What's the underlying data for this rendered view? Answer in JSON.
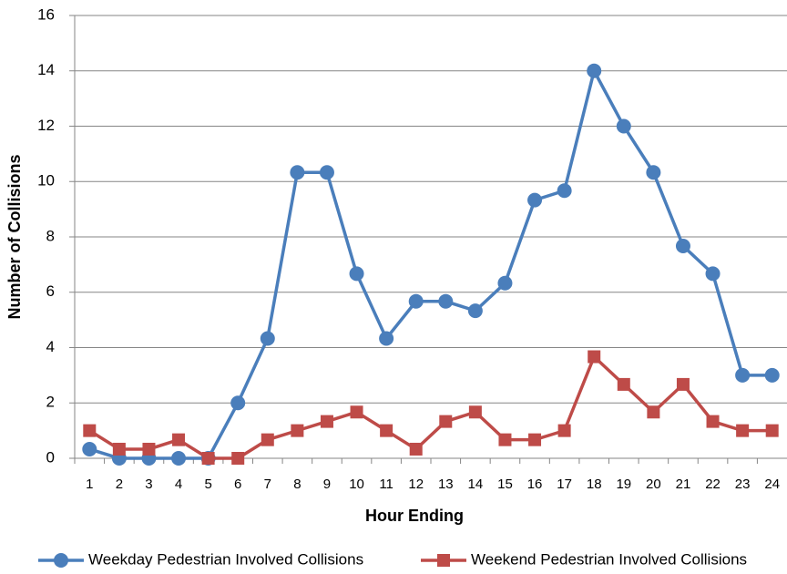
{
  "chart_data": {
    "type": "line",
    "xlabel": "Hour Ending",
    "ylabel": "Number of  Collisions",
    "categories": [
      "1",
      "2",
      "3",
      "4",
      "5",
      "6",
      "7",
      "8",
      "9",
      "10",
      "11",
      "12",
      "13",
      "14",
      "15",
      "16",
      "17",
      "18",
      "19",
      "20",
      "21",
      "22",
      "23",
      "24"
    ],
    "series": [
      {
        "name": "Weekday Pedestrian Involved Collisions",
        "color": "#4a7ebb",
        "marker": "circle",
        "values": [
          0.33,
          0,
          0,
          0,
          0,
          2,
          4.33,
          10.33,
          10.33,
          6.67,
          4.33,
          5.67,
          5.67,
          5.33,
          6.33,
          9.33,
          9.67,
          14,
          12,
          10.33,
          7.67,
          6.67,
          3,
          3
        ]
      },
      {
        "name": "Weekend Pedestrian Involved Collisions",
        "color": "#be4b48",
        "marker": "square",
        "values": [
          1,
          0.33,
          0.33,
          0.67,
          0,
          0,
          0.67,
          1,
          1.33,
          1.67,
          1,
          0.33,
          1.33,
          1.67,
          0.67,
          0.67,
          1,
          3.67,
          2.67,
          1.67,
          2.67,
          1.33,
          1,
          1
        ]
      }
    ],
    "ylim": [
      0,
      16
    ],
    "yticks": [
      0,
      2,
      4,
      6,
      8,
      10,
      12,
      14,
      16
    ],
    "grid": true,
    "legend": "bottom"
  }
}
